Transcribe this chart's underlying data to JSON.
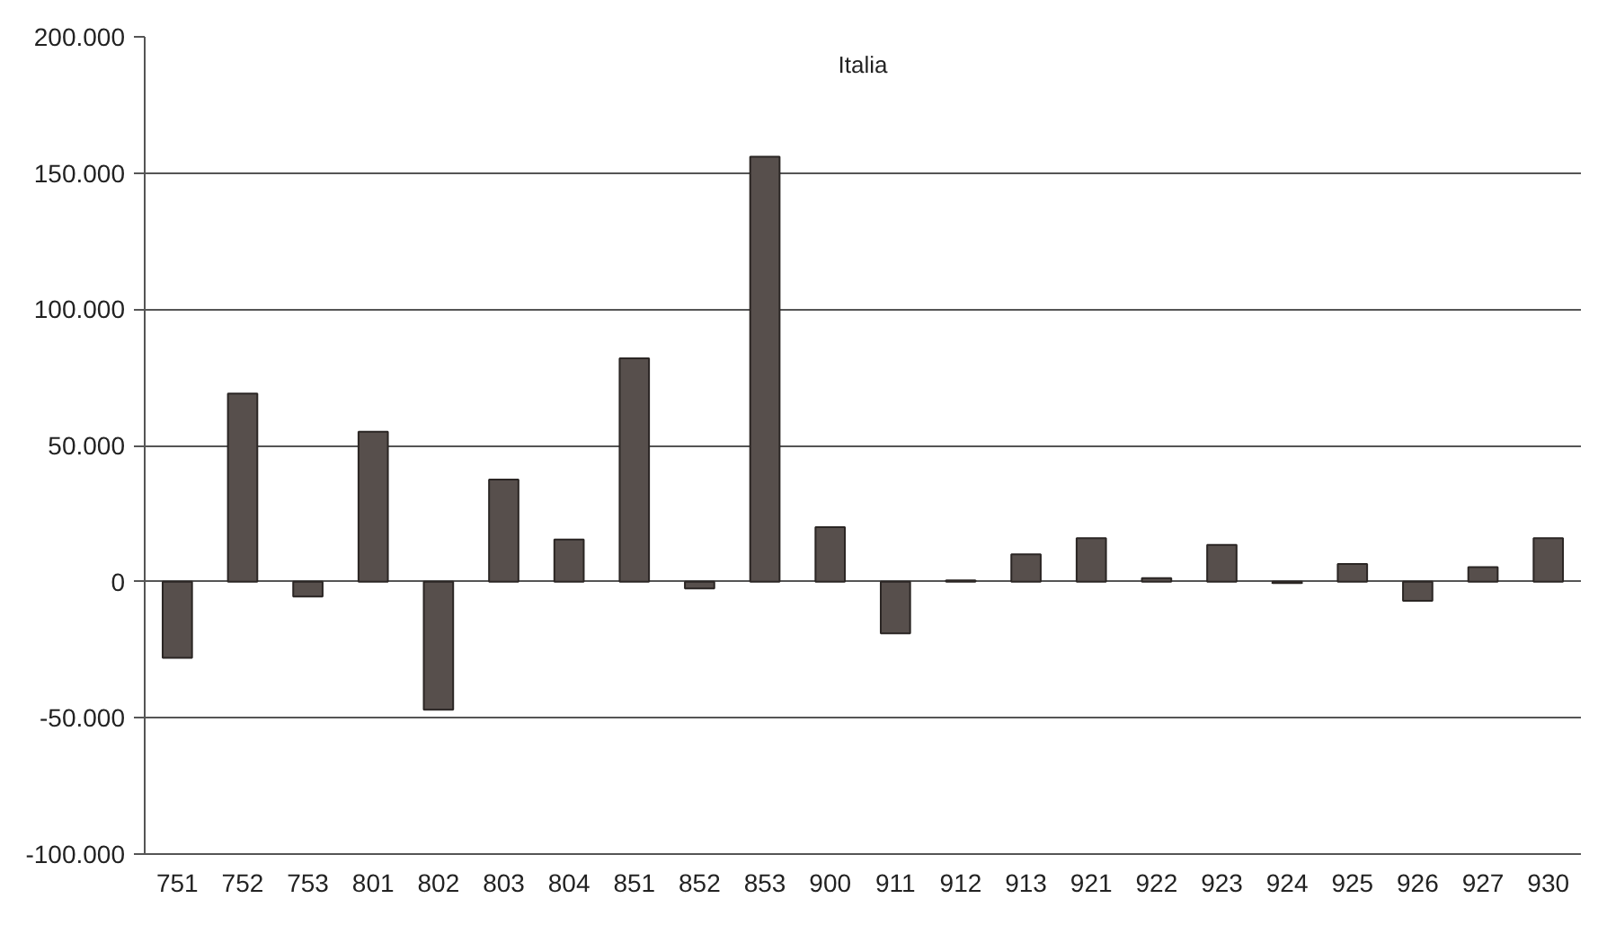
{
  "chart_data": {
    "type": "bar",
    "title": "Italia",
    "categories": [
      "751",
      "752",
      "753",
      "801",
      "802",
      "803",
      "804",
      "851",
      "852",
      "853",
      "900",
      "911",
      "912",
      "913",
      "921",
      "922",
      "923",
      "924",
      "925",
      "926",
      "927",
      "930"
    ],
    "values": [
      -28000,
      69000,
      -5500,
      55000,
      -47000,
      37500,
      15500,
      82000,
      -2500,
      156000,
      20000,
      -19000,
      500,
      10000,
      16000,
      1300,
      13500,
      -500,
      6500,
      -7000,
      5300,
      16000
    ],
    "color": "#574f4c",
    "ylim": [
      -100000,
      200000
    ],
    "yticks": [
      {
        "value": -100000,
        "label": "-100.000"
      },
      {
        "value": -50000,
        "label": "-50.000"
      },
      0,
      {
        "value": 50000,
        "label": "50.000"
      },
      {
        "value": 100000,
        "label": "100.000"
      },
      {
        "value": 150000,
        "label": "150.000"
      },
      {
        "value": 200000,
        "label": "200.000"
      }
    ],
    "grid": "y"
  }
}
